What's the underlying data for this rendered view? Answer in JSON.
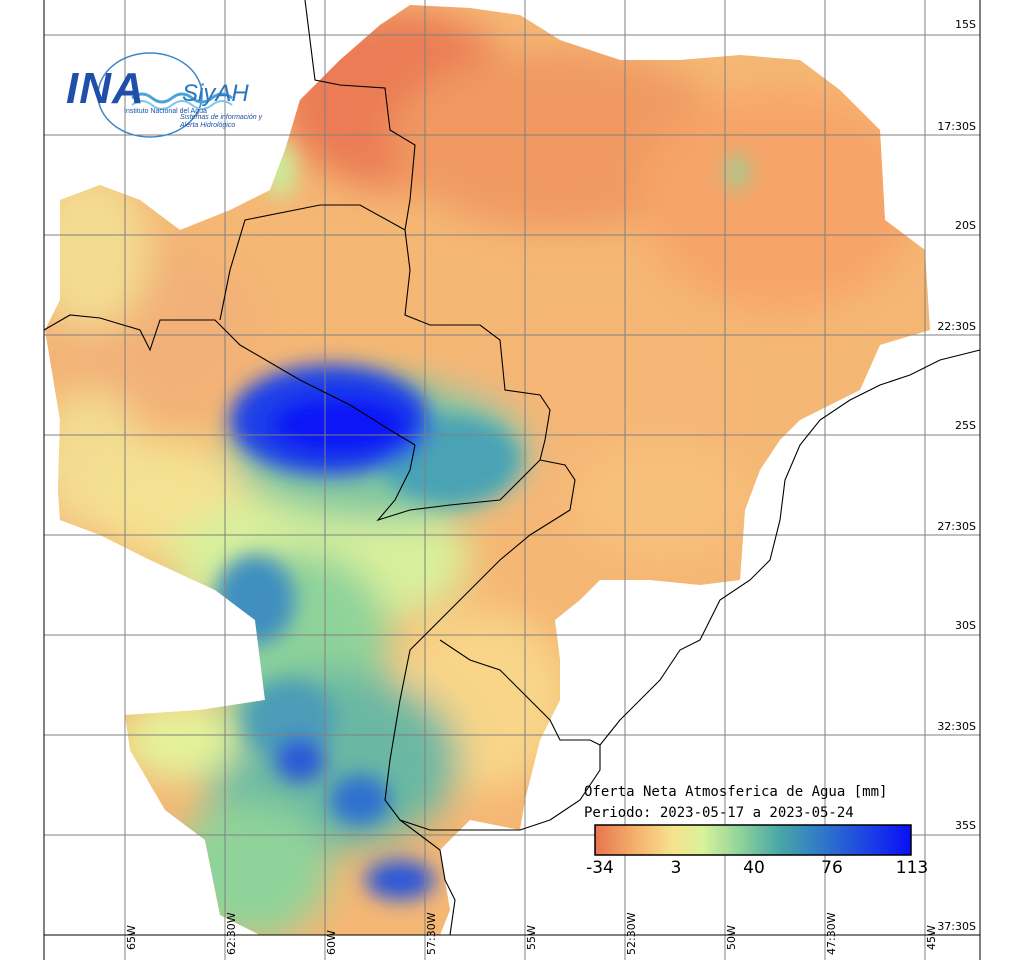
{
  "logo": {
    "ina": "INA",
    "siyah": "SiyAH",
    "sub_institute": "Instituto Nacional del Agua",
    "sub_system": "Sistemas de información y Alerta Hidrológico"
  },
  "map": {
    "title": "Oferta Neta Atmosferica de Agua [mm]",
    "period": "Periodo: 2023-05-17 a 2023-05-24",
    "colorbar": {
      "ticks": [
        "-34",
        "3",
        "40",
        "76",
        "113"
      ],
      "colors": [
        "#e8744d",
        "#f3ad6a",
        "#f7e08c",
        "#d9f29a",
        "#8fd39a",
        "#4aa8a6",
        "#2f78c8",
        "#1b3fe6",
        "#0a0ff5"
      ]
    },
    "lat_labels": [
      "15S",
      "17:30S",
      "20S",
      "22:30S",
      "25S",
      "27:30S",
      "30S",
      "32:30S",
      "35S",
      "37:30S"
    ],
    "lon_labels": [
      "65W",
      "62:30W",
      "60W",
      "57:30W",
      "55W",
      "52:30W",
      "50W",
      "47:30W",
      "45W"
    ]
  }
}
